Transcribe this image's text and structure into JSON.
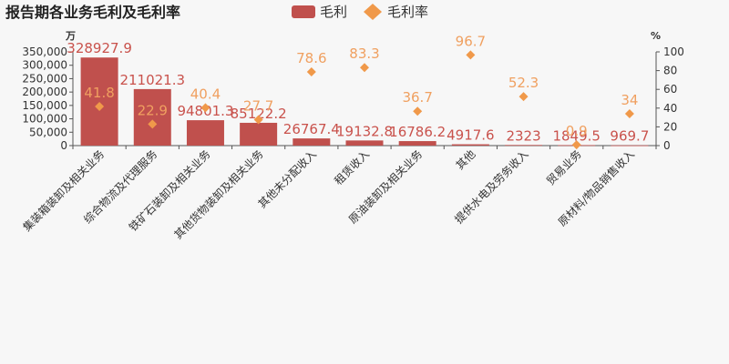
{
  "chart_data": {
    "type": "bar",
    "title": "报告期各业务毛利及毛利率",
    "legend": {
      "placement": "top-center",
      "items": [
        "毛利",
        "毛利率"
      ]
    },
    "categories": [
      "集装箱装卸及相关业务",
      "综合物流及代理服务",
      "铁矿石装卸及相关业务",
      "其他货物装卸及相关业务",
      "其他未分配收入",
      "租赁收入",
      "原油装卸及相关业务",
      "其他",
      "提供水电及劳务收入",
      "贸易业务",
      "原材料/物品销售收入"
    ],
    "series": [
      {
        "name": "毛利",
        "kind": "bar",
        "axis": "left",
        "color": "#c0504d",
        "values": [
          328927.9,
          211021.3,
          94801.3,
          85122.2,
          26767.4,
          19132.8,
          16786.2,
          4917.6,
          2323,
          1849.5,
          969.7
        ]
      },
      {
        "name": "毛利率",
        "kind": "scatter",
        "marker": "diamond",
        "axis": "right",
        "color": "#f0994a",
        "values": [
          41.8,
          22.9,
          40.4,
          27.7,
          78.6,
          83.3,
          36.7,
          96.7,
          52.3,
          0.9,
          34
        ]
      }
    ],
    "y_left": {
      "unit": "万",
      "ylim": [
        0,
        350000
      ],
      "ticks": [
        "0",
        "50,000",
        "100,000",
        "150,000",
        "200,000",
        "250,000",
        "300,000",
        "350,000"
      ]
    },
    "y_right": {
      "unit": "%",
      "ylim": [
        0,
        100
      ],
      "ticks": [
        "0",
        "20",
        "40",
        "60",
        "80",
        "100"
      ]
    },
    "grid": false
  }
}
